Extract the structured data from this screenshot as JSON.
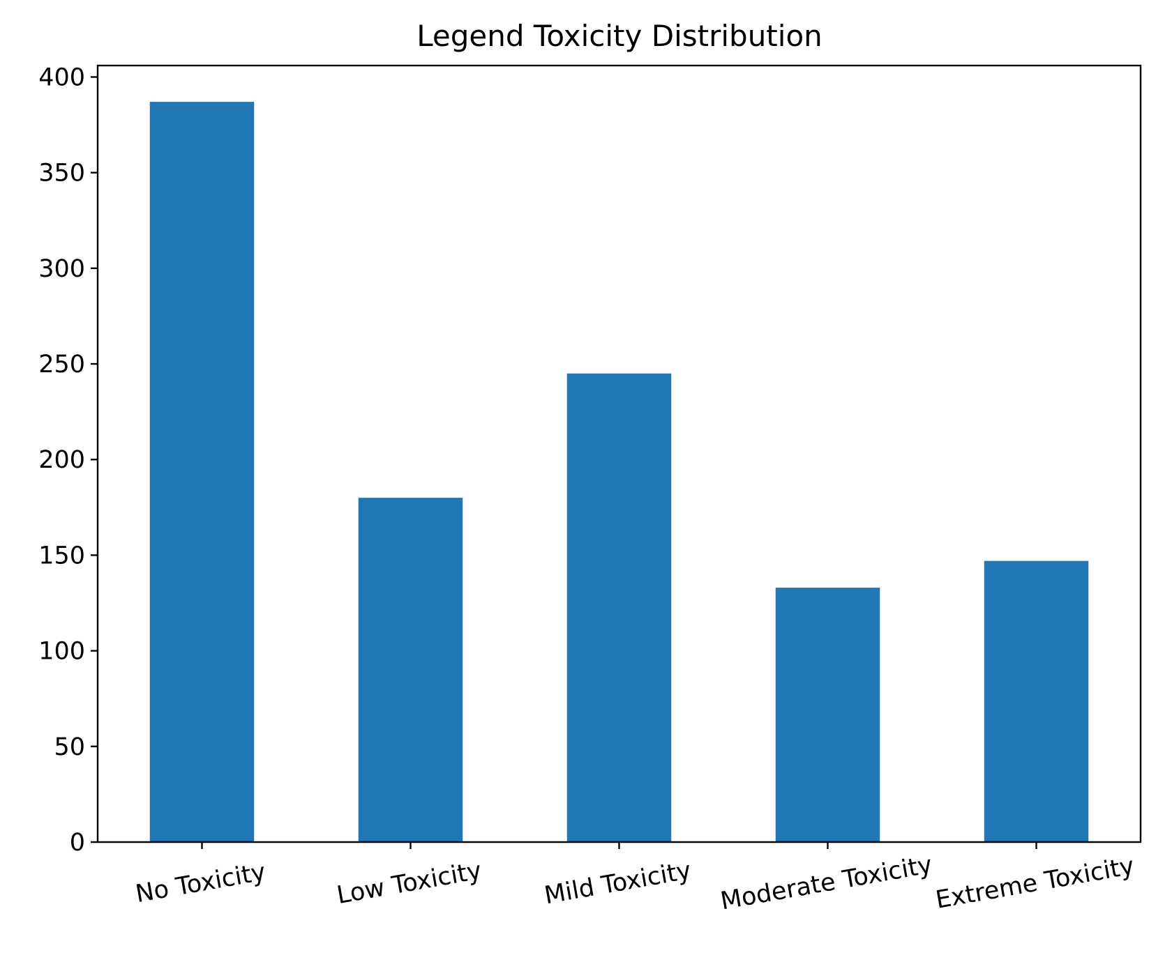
{
  "chart_data": {
    "type": "bar",
    "title": "Legend Toxicity Distribution",
    "xlabel": "",
    "ylabel": "",
    "categories": [
      "No Toxicity",
      "Low Toxicity",
      "Mild Toxicity",
      "Moderate Toxicity",
      "Extreme Toxicity"
    ],
    "values": [
      387,
      180,
      245,
      133,
      147
    ],
    "ylim": [
      0,
      406
    ],
    "yticks": [
      0,
      50,
      100,
      150,
      200,
      250,
      300,
      350,
      400
    ],
    "xtick_rotation_deg": 10,
    "bar_color": "#2077b4",
    "grid": false,
    "legend": "none"
  }
}
